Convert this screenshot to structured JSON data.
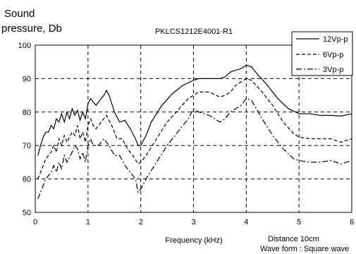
{
  "chart_data": {
    "type": "line",
    "title": "PKLCS1212E4001-R1",
    "ylabel_line1": "Sound",
    "ylabel_line2": "pressure, Db",
    "xlabel": "Frequency (kHz)",
    "note_line1": "Distance 10cm",
    "note_line2": "Wave form : Square wave",
    "xlim": [
      0,
      6
    ],
    "ylim": [
      50,
      100
    ],
    "xticks": [
      0,
      1,
      2,
      3,
      4,
      5,
      6
    ],
    "yticks": [
      50,
      60,
      70,
      80,
      90,
      100
    ],
    "grid": true,
    "legend_position": "top-right",
    "series": [
      {
        "name": "12Vp-p",
        "style": "solid",
        "points": [
          [
            0.05,
            67
          ],
          [
            0.1,
            70
          ],
          [
            0.15,
            72.5
          ],
          [
            0.2,
            74
          ],
          [
            0.25,
            74
          ],
          [
            0.3,
            76
          ],
          [
            0.35,
            75
          ],
          [
            0.4,
            78
          ],
          [
            0.45,
            77
          ],
          [
            0.5,
            79.5
          ],
          [
            0.55,
            77
          ],
          [
            0.6,
            80
          ],
          [
            0.65,
            78
          ],
          [
            0.7,
            81
          ],
          [
            0.75,
            79
          ],
          [
            0.8,
            80.5
          ],
          [
            0.85,
            77.5
          ],
          [
            0.9,
            80
          ],
          [
            0.95,
            78
          ],
          [
            1.0,
            82.5
          ],
          [
            1.05,
            84
          ],
          [
            1.1,
            83
          ],
          [
            1.15,
            82
          ],
          [
            1.2,
            83
          ],
          [
            1.3,
            85
          ],
          [
            1.35,
            86.5
          ],
          [
            1.4,
            85
          ],
          [
            1.5,
            80
          ],
          [
            1.6,
            77
          ],
          [
            1.7,
            77.5
          ],
          [
            1.8,
            75
          ],
          [
            1.9,
            72
          ],
          [
            1.95,
            70
          ],
          [
            2.0,
            70
          ],
          [
            2.1,
            73
          ],
          [
            2.2,
            77
          ],
          [
            2.4,
            82
          ],
          [
            2.6,
            85.5
          ],
          [
            2.8,
            88
          ],
          [
            3.0,
            89.5
          ],
          [
            3.1,
            90
          ],
          [
            3.3,
            90
          ],
          [
            3.5,
            90
          ],
          [
            3.6,
            90.5
          ],
          [
            3.7,
            92
          ],
          [
            3.8,
            92.5
          ],
          [
            3.9,
            93
          ],
          [
            4.0,
            94
          ],
          [
            4.1,
            93.5
          ],
          [
            4.2,
            91.5
          ],
          [
            4.4,
            88
          ],
          [
            4.6,
            84
          ],
          [
            4.8,
            81
          ],
          [
            5.0,
            79.5
          ],
          [
            5.2,
            79.5
          ],
          [
            5.4,
            79
          ],
          [
            5.6,
            79
          ],
          [
            5.8,
            78.8
          ],
          [
            6.0,
            79.5
          ]
        ]
      },
      {
        "name": "6Vp-p",
        "style": "dashed",
        "points": [
          [
            0.05,
            60
          ],
          [
            0.1,
            62
          ],
          [
            0.15,
            64
          ],
          [
            0.2,
            66
          ],
          [
            0.3,
            68
          ],
          [
            0.35,
            70
          ],
          [
            0.4,
            68
          ],
          [
            0.45,
            72
          ],
          [
            0.5,
            70
          ],
          [
            0.55,
            73
          ],
          [
            0.6,
            71
          ],
          [
            0.7,
            74
          ],
          [
            0.75,
            73
          ],
          [
            0.8,
            76
          ],
          [
            0.85,
            72
          ],
          [
            0.9,
            74
          ],
          [
            0.95,
            71
          ],
          [
            1.0,
            76
          ],
          [
            1.05,
            78
          ],
          [
            1.1,
            76
          ],
          [
            1.15,
            75
          ],
          [
            1.25,
            77
          ],
          [
            1.35,
            79
          ],
          [
            1.45,
            76
          ],
          [
            1.55,
            72
          ],
          [
            1.65,
            72
          ],
          [
            1.75,
            69
          ],
          [
            1.85,
            67
          ],
          [
            1.95,
            64.5
          ],
          [
            2.0,
            65
          ],
          [
            2.1,
            67
          ],
          [
            2.3,
            72
          ],
          [
            2.5,
            77
          ],
          [
            2.7,
            80.5
          ],
          [
            2.9,
            84
          ],
          [
            3.0,
            85
          ],
          [
            3.1,
            86
          ],
          [
            3.3,
            86
          ],
          [
            3.5,
            84.5
          ],
          [
            3.6,
            85
          ],
          [
            3.7,
            86
          ],
          [
            3.8,
            88
          ],
          [
            3.9,
            89
          ],
          [
            4.0,
            90
          ],
          [
            4.1,
            89.5
          ],
          [
            4.3,
            86
          ],
          [
            4.5,
            82
          ],
          [
            4.7,
            77
          ],
          [
            4.9,
            73.5
          ],
          [
            5.0,
            72.5
          ],
          [
            5.2,
            72
          ],
          [
            5.4,
            72
          ],
          [
            5.6,
            72
          ],
          [
            5.8,
            71
          ],
          [
            6.0,
            72
          ]
        ]
      },
      {
        "name": "3Vp-p",
        "style": "dashdot",
        "points": [
          [
            0.05,
            54
          ],
          [
            0.1,
            56
          ],
          [
            0.15,
            58
          ],
          [
            0.2,
            60
          ],
          [
            0.3,
            62
          ],
          [
            0.35,
            64
          ],
          [
            0.4,
            62
          ],
          [
            0.45,
            65
          ],
          [
            0.5,
            63
          ],
          [
            0.55,
            67
          ],
          [
            0.6,
            65
          ],
          [
            0.7,
            68
          ],
          [
            0.75,
            70
          ],
          [
            0.8,
            69
          ],
          [
            0.85,
            66
          ],
          [
            0.9,
            68
          ],
          [
            0.95,
            65
          ],
          [
            1.0,
            70
          ],
          [
            1.05,
            72
          ],
          [
            1.1,
            70
          ],
          [
            1.2,
            70
          ],
          [
            1.3,
            72
          ],
          [
            1.4,
            70
          ],
          [
            1.5,
            67
          ],
          [
            1.6,
            67
          ],
          [
            1.7,
            64
          ],
          [
            1.8,
            62
          ],
          [
            1.9,
            60
          ],
          [
            1.95,
            56
          ],
          [
            2.0,
            57
          ],
          [
            2.1,
            60
          ],
          [
            2.3,
            65
          ],
          [
            2.5,
            70
          ],
          [
            2.7,
            74
          ],
          [
            2.9,
            78
          ],
          [
            3.0,
            81
          ],
          [
            3.1,
            80
          ],
          [
            3.3,
            79
          ],
          [
            3.5,
            77
          ],
          [
            3.6,
            78
          ],
          [
            3.7,
            80
          ],
          [
            3.9,
            82
          ],
          [
            4.0,
            84
          ],
          [
            4.1,
            83.5
          ],
          [
            4.3,
            78
          ],
          [
            4.5,
            73
          ],
          [
            4.7,
            69
          ],
          [
            4.9,
            66
          ],
          [
            5.0,
            65.5
          ],
          [
            5.2,
            65
          ],
          [
            5.4,
            65
          ],
          [
            5.6,
            65.5
          ],
          [
            5.8,
            64.5
          ],
          [
            6.0,
            65.5
          ]
        ]
      }
    ]
  }
}
